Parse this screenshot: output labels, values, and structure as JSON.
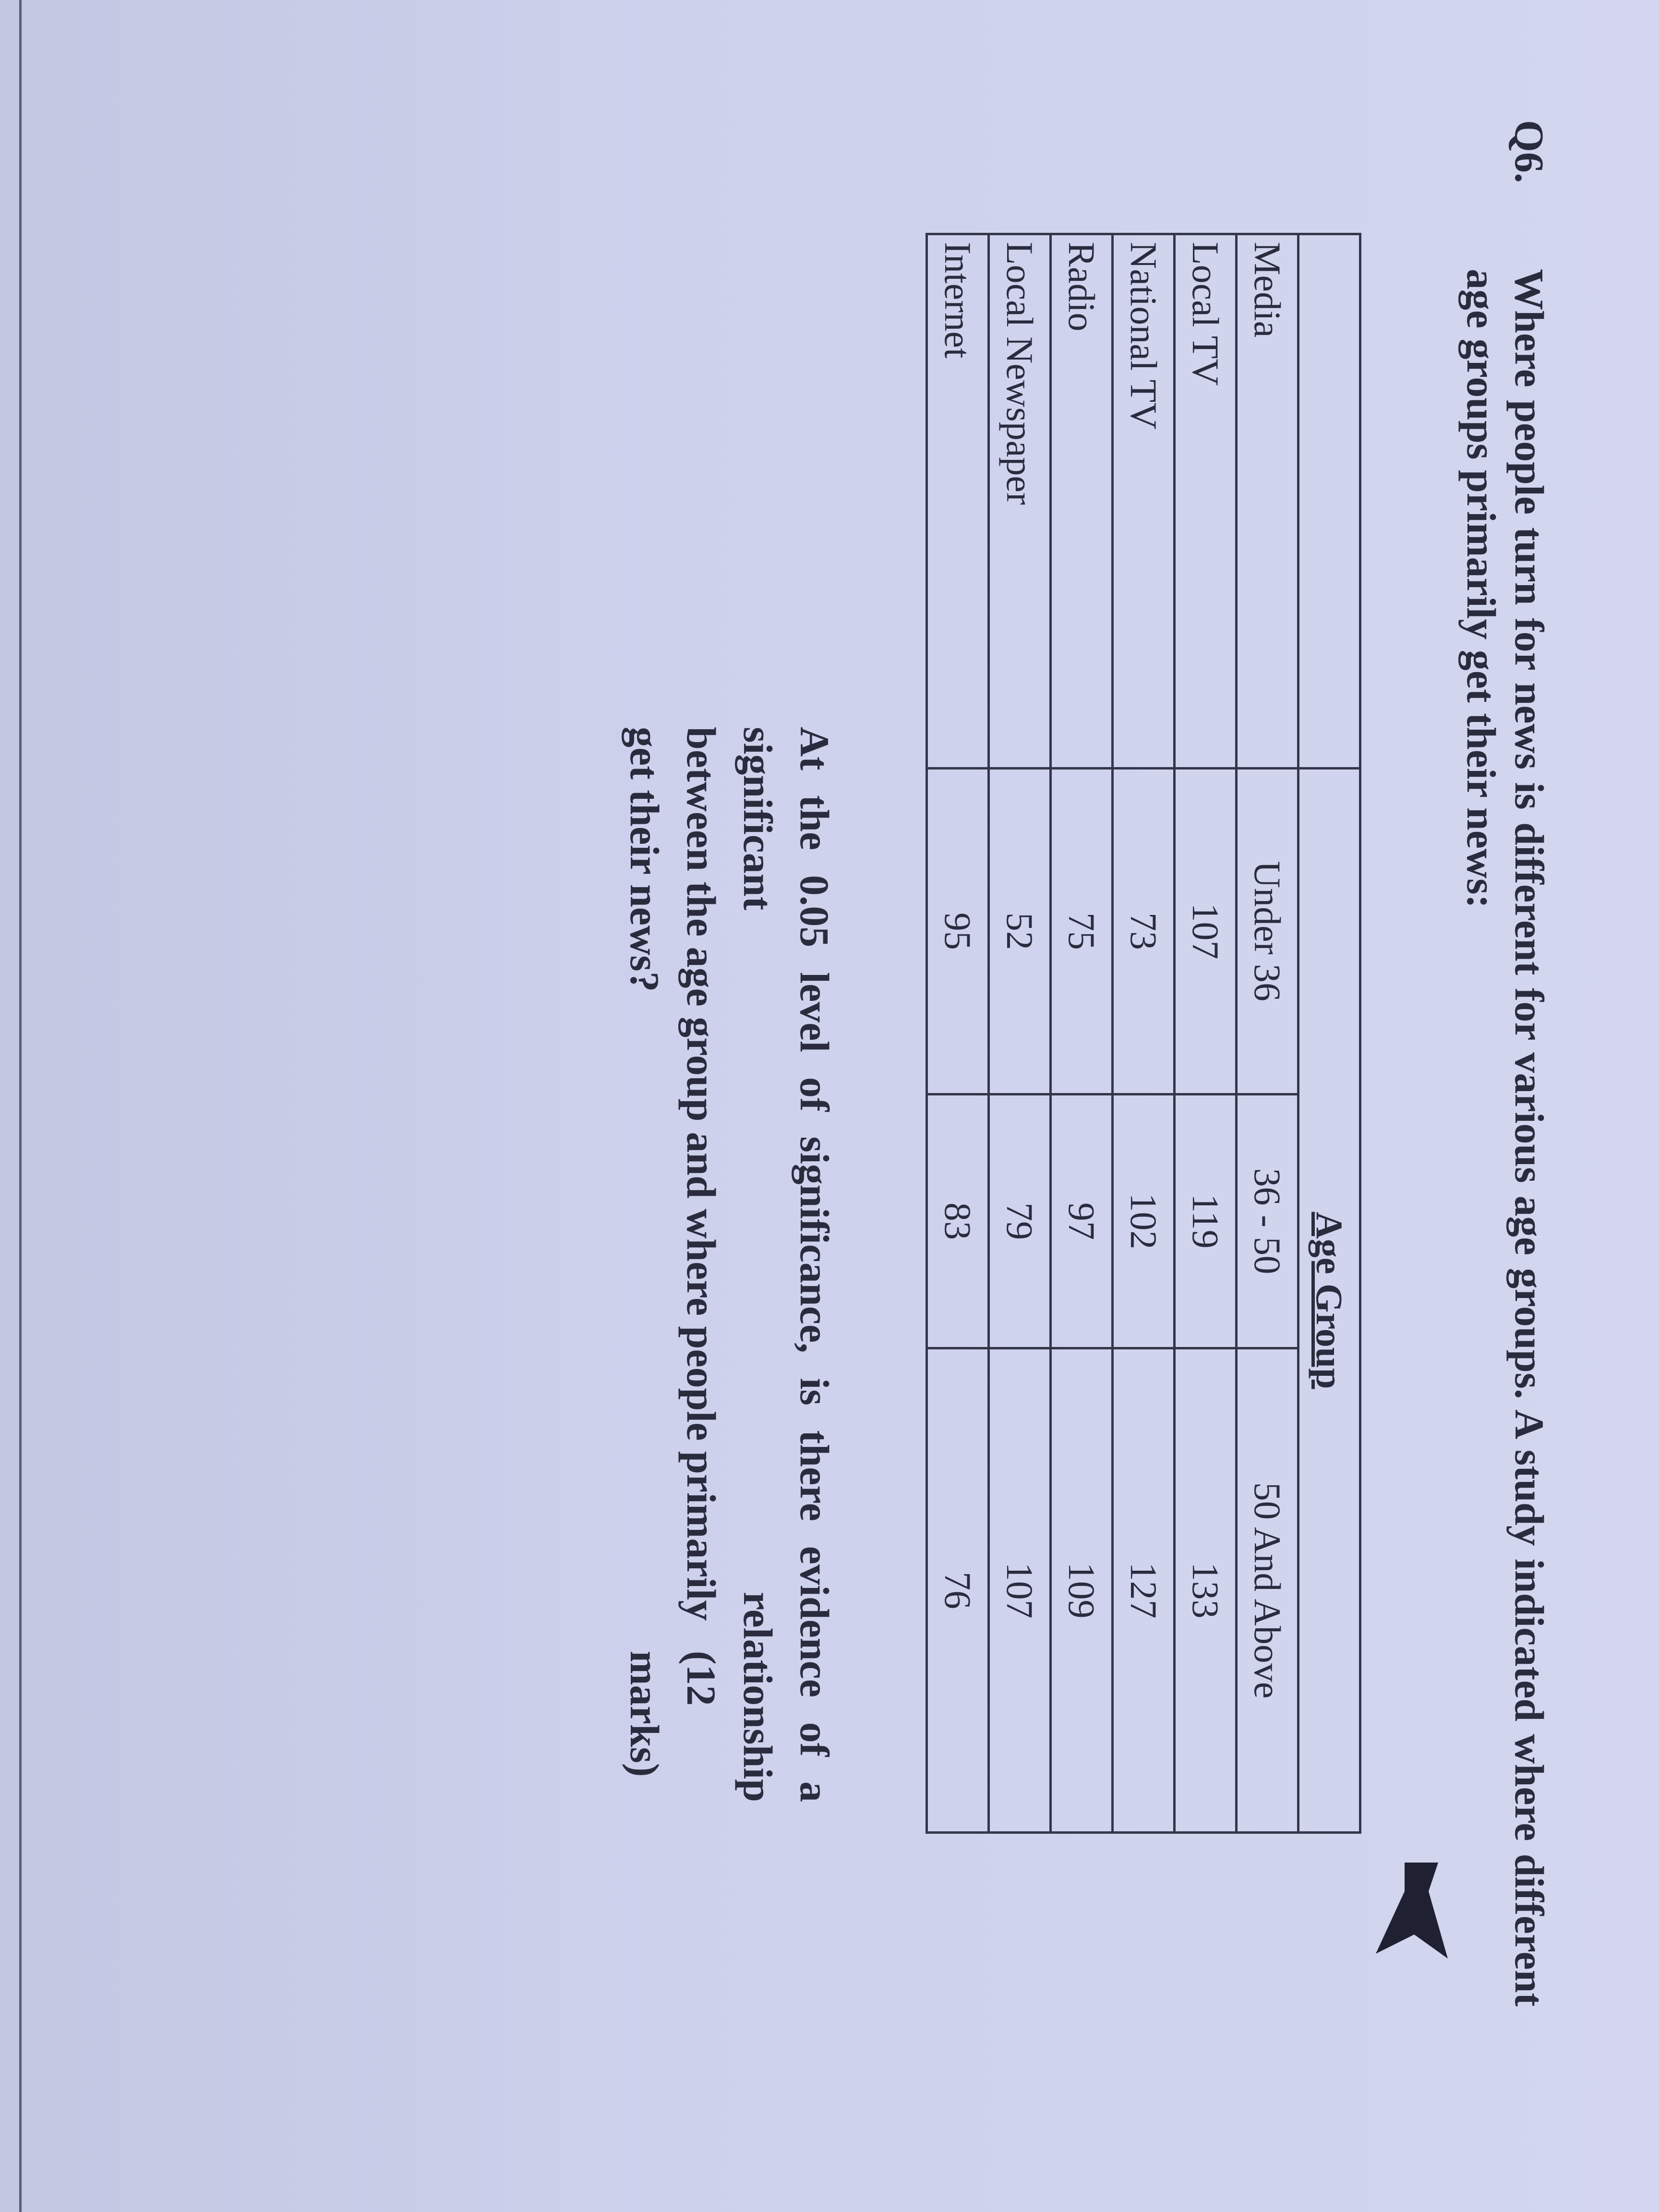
{
  "question": {
    "number": "Q6.",
    "text": "Where people turn for news is different for various age groups. A study indicated where different age groups primarily get their news:",
    "prompt_line1": "At the 0.05 level of significance, is there evidence of a significant relationship",
    "prompt_line2": "between the age group and where people primarily get their news?",
    "marks": "(12 marks)"
  },
  "table": {
    "group_header": "Age Group",
    "columns": [
      "Media",
      "Under 36",
      "36 - 50",
      "50 And Above"
    ],
    "rows": [
      [
        "Local TV",
        "107",
        "119",
        "133"
      ],
      [
        "National TV",
        "73",
        "102",
        "127"
      ],
      [
        "Radio",
        "75",
        "97",
        "109"
      ],
      [
        "Local Newspaper",
        "52",
        "79",
        "107"
      ],
      [
        "Internet",
        "95",
        "83",
        "76"
      ]
    ]
  }
}
